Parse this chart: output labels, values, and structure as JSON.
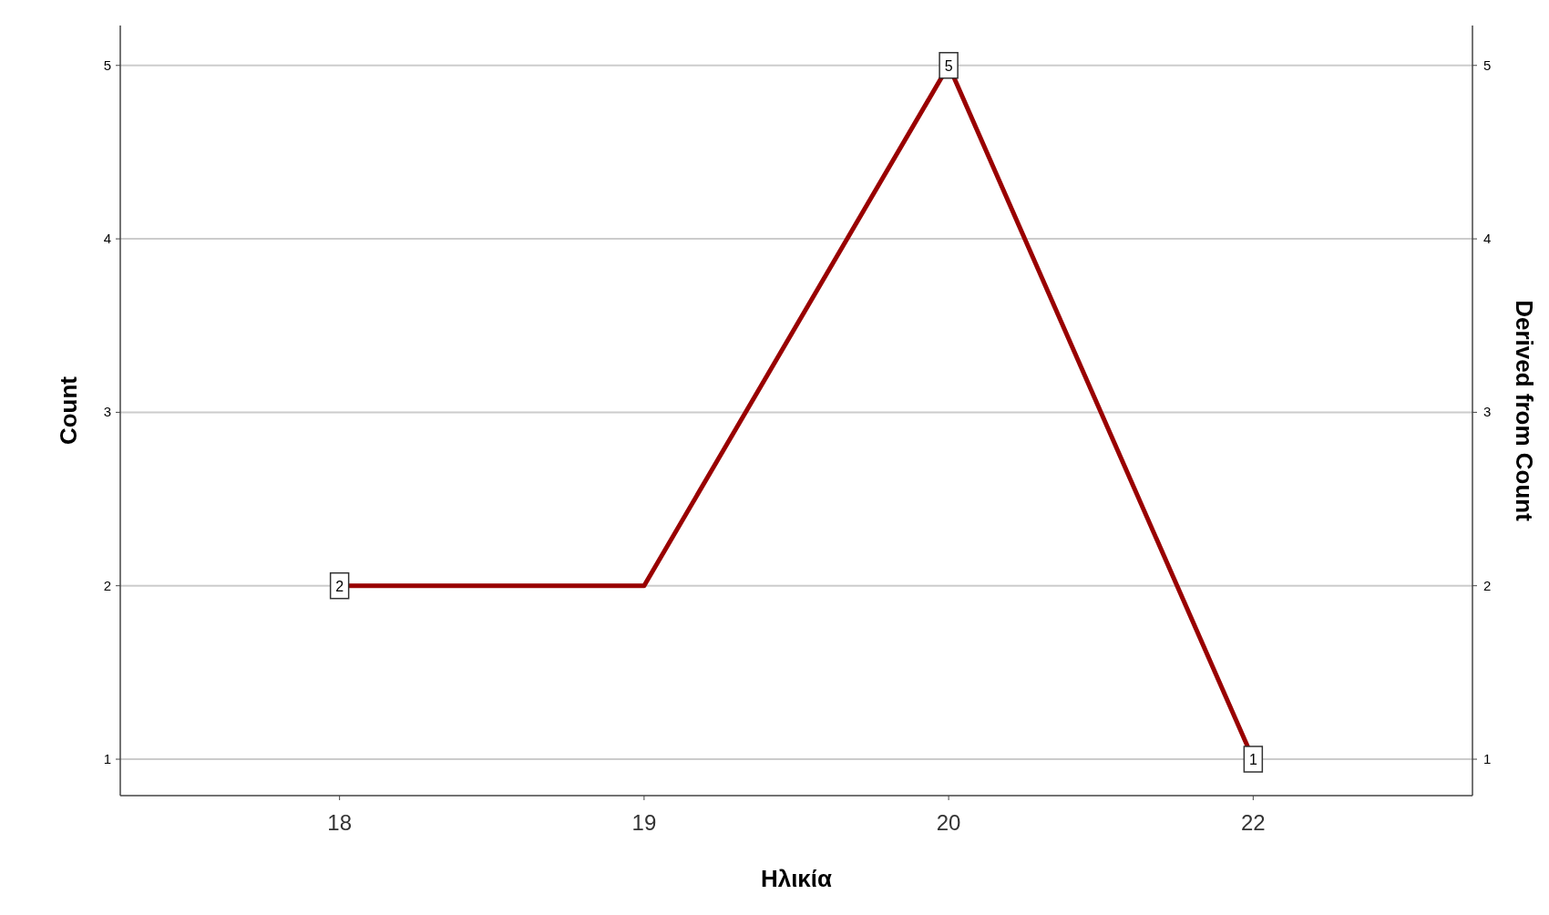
{
  "chart_data": {
    "type": "line",
    "xlabel": "Ηλικία",
    "ylabel": "Count",
    "y2label": "Derived from Count",
    "categories": [
      "18",
      "19",
      "20",
      "22"
    ],
    "series": [
      {
        "color": "#990000",
        "values": [
          2,
          2,
          5,
          1
        ],
        "value_labels": [
          "2",
          null,
          "5",
          "1"
        ]
      }
    ],
    "ylim": [
      0.79,
      5.23
    ],
    "yticks": [
      1,
      2,
      3,
      4,
      5
    ],
    "y2lim": [
      0.79,
      5.23
    ],
    "y2ticks": [
      1,
      2,
      3,
      4,
      5
    ],
    "grid": "y",
    "line_style": "solid"
  }
}
